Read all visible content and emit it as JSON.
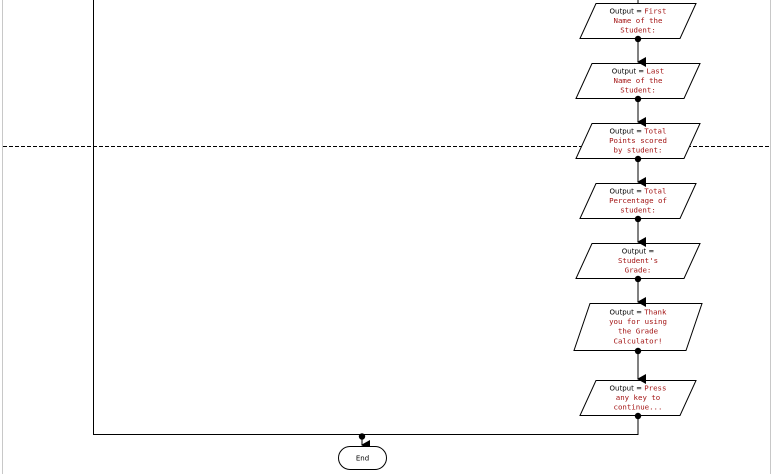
{
  "diagram": {
    "nodes": [
      {
        "id": "out-first-name",
        "label": "Output",
        "eq": " = ",
        "value_first": "First",
        "value_lines": [
          "Name of the",
          "Student:"
        ]
      },
      {
        "id": "out-last-name",
        "label": "Output",
        "eq": " = ",
        "value_first": "Last",
        "value_lines": [
          "Name of the",
          "Student:"
        ]
      },
      {
        "id": "out-total-points",
        "label": "Output",
        "eq": " = ",
        "value_first": "Total",
        "value_lines": [
          "Points scored",
          "by student:"
        ]
      },
      {
        "id": "out-total-percentage",
        "label": "Output",
        "eq": " = ",
        "value_first": "Total",
        "value_lines": [
          "Percentage of",
          "student:"
        ]
      },
      {
        "id": "out-grade",
        "label": "Output",
        "eq": " = ",
        "value_first": "",
        "value_lines": [
          "Student's",
          "Grade:"
        ]
      },
      {
        "id": "out-thank-you",
        "label": "Output",
        "eq": " = ",
        "value_first": "Thank",
        "value_lines": [
          "you for using",
          "the Grade",
          "Calculator!"
        ]
      },
      {
        "id": "out-press-key",
        "label": "Output",
        "eq": " = ",
        "value_first": "Press",
        "value_lines": [
          "any key to",
          "continue..."
        ]
      }
    ],
    "end": {
      "label": "End"
    }
  },
  "colors": {
    "line": "#000000",
    "text_value": "#a31515",
    "page_break": "#000000",
    "background": "#ffffff"
  }
}
